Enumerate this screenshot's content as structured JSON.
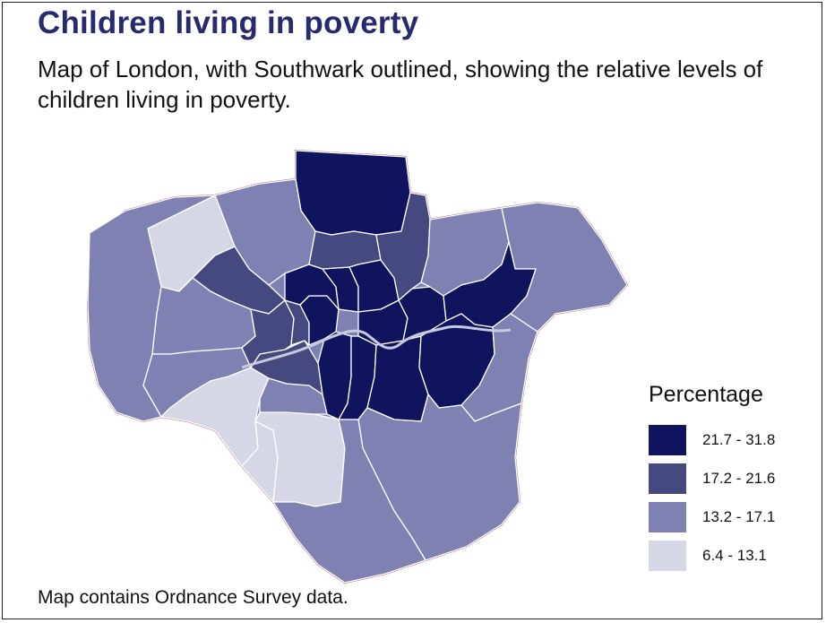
{
  "title": "Children living in poverty",
  "subtitle": "Map of London, with Southwark outlined, showing the relative levels of children living in poverty.",
  "footer": "Map contains Ordnance Survey data.",
  "legend": {
    "title": "Percentage",
    "items": [
      {
        "label": "21.7 - 31.8",
        "color": "#10135e"
      },
      {
        "label": "17.2 - 21.6",
        "color": "#46497f"
      },
      {
        "label": "13.2 - 17.1",
        "color": "#7f81b3"
      },
      {
        "label": "6.4 - 13.1",
        "color": "#d5d6e6"
      }
    ]
  },
  "colors": {
    "boundary": "#a0404f",
    "borough_edge": "#ffffff",
    "title": "#262a6e"
  },
  "map_regions": [
    {
      "name": "enfield",
      "band": "21.7 - 31.8"
    },
    {
      "name": "barnet",
      "band": "13.2 - 17.1"
    },
    {
      "name": "harrow",
      "band": "6.4 - 13.1"
    },
    {
      "name": "hillingdon",
      "band": "13.2 - 17.1"
    },
    {
      "name": "brent",
      "band": "17.2 - 21.6"
    },
    {
      "name": "ealing",
      "band": "13.2 - 17.1"
    },
    {
      "name": "hounslow",
      "band": "13.2 - 17.1"
    },
    {
      "name": "richmond",
      "band": "6.4 - 13.1"
    },
    {
      "name": "kingston",
      "band": "6.4 - 13.1"
    },
    {
      "name": "sutton",
      "band": "6.4 - 13.1"
    },
    {
      "name": "merton",
      "band": "13.2 - 17.1"
    },
    {
      "name": "wandsworth",
      "band": "17.2 - 21.6"
    },
    {
      "name": "hammersmith",
      "band": "17.2 - 21.6"
    },
    {
      "name": "kensington",
      "band": "17.2 - 21.6"
    },
    {
      "name": "westminster",
      "band": "21.7 - 31.8"
    },
    {
      "name": "camden",
      "band": "21.7 - 31.8"
    },
    {
      "name": "islington",
      "band": "21.7 - 31.8"
    },
    {
      "name": "haringey",
      "band": "17.2 - 21.6"
    },
    {
      "name": "hackney",
      "band": "21.7 - 31.8"
    },
    {
      "name": "tower-hamlets",
      "band": "21.7 - 31.8"
    },
    {
      "name": "newham",
      "band": "21.7 - 31.8"
    },
    {
      "name": "waltham-forest",
      "band": "17.2 - 21.6"
    },
    {
      "name": "redbridge",
      "band": "13.2 - 17.1"
    },
    {
      "name": "havering",
      "band": "13.2 - 17.1"
    },
    {
      "name": "barking",
      "band": "21.7 - 31.8"
    },
    {
      "name": "lambeth",
      "band": "21.7 - 31.8"
    },
    {
      "name": "southwark",
      "band": "21.7 - 31.8"
    },
    {
      "name": "lewisham",
      "band": "21.7 - 31.8"
    },
    {
      "name": "greenwich",
      "band": "21.7 - 31.8"
    },
    {
      "name": "bexley",
      "band": "13.2 - 17.1"
    },
    {
      "name": "bromley",
      "band": "13.2 - 17.1"
    },
    {
      "name": "croydon",
      "band": "13.2 - 17.1"
    }
  ]
}
